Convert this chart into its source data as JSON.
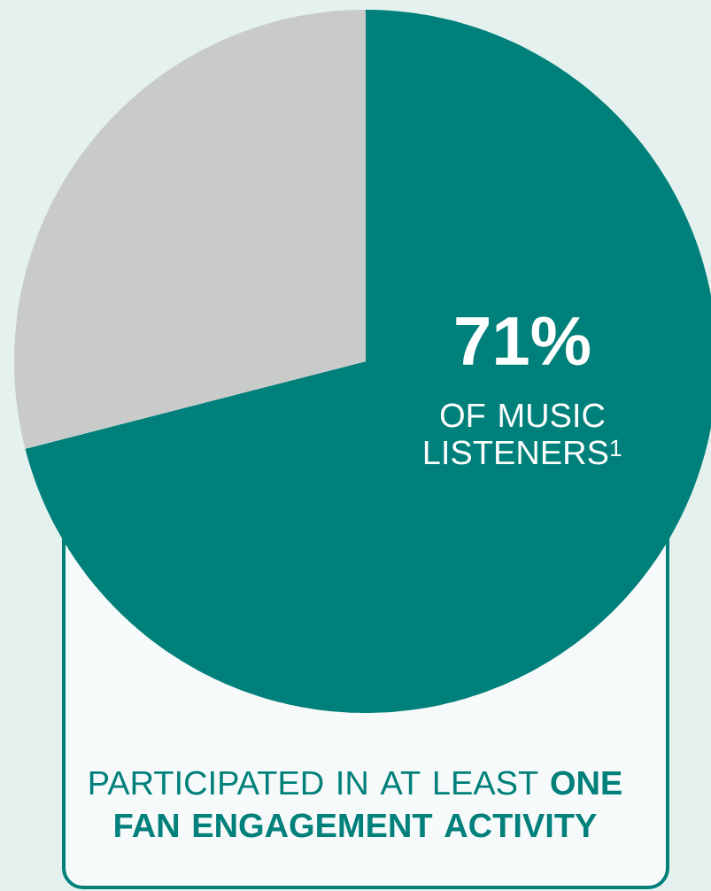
{
  "chart_data": {
    "type": "pie",
    "categories": [
      "OF MUSIC LISTENERS$^{1}$",
      null
    ],
    "values": [
      71,
      29
    ],
    "colors": [
      "#00807a",
      "#c9cbcb"
    ],
    "value_labels": [
      "71%",
      null
    ],
    "annotations": [
      "PARTICIPATED IN AT LEAST **ONE FAN ENGAGEMENT ACTIVITY**"
    ]
  }
}
